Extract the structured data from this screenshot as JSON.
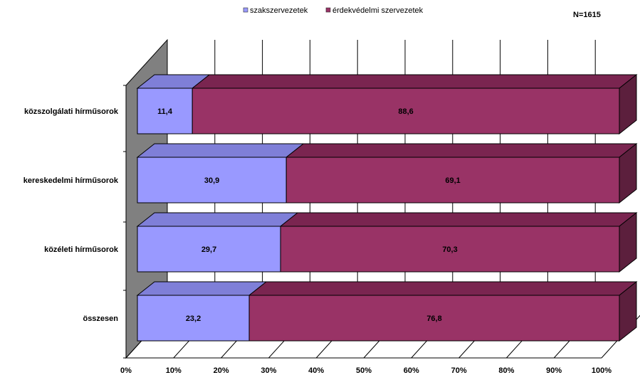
{
  "chart_data": {
    "type": "bar",
    "orientation": "horizontal",
    "stacked": "100%",
    "style": "3d",
    "note": "N=1615",
    "categories": [
      "közszolgálati hírműsorok",
      "kereskedelmi hírműsorok",
      "közéleti hírműsorok",
      "összesen"
    ],
    "series": [
      {
        "name": "szakszervezetek",
        "values": [
          11.4,
          30.9,
          29.7,
          23.2
        ],
        "color": "#9999FF"
      },
      {
        "name": "érdekvédelmi szervezetek",
        "values": [
          88.6,
          69.1,
          70.3,
          76.8
        ],
        "color": "#993366"
      }
    ],
    "value_labels": [
      [
        "11,4",
        "30,9",
        "29,7",
        "23,2"
      ],
      [
        "88,6",
        "69,1",
        "70,3",
        "76,8"
      ]
    ],
    "xticks": [
      "0%",
      "10%",
      "20%",
      "30%",
      "40%",
      "50%",
      "60%",
      "70%",
      "80%",
      "90%",
      "100%"
    ],
    "xlim": [
      0,
      100
    ],
    "grid": true,
    "legend_position": "top"
  }
}
